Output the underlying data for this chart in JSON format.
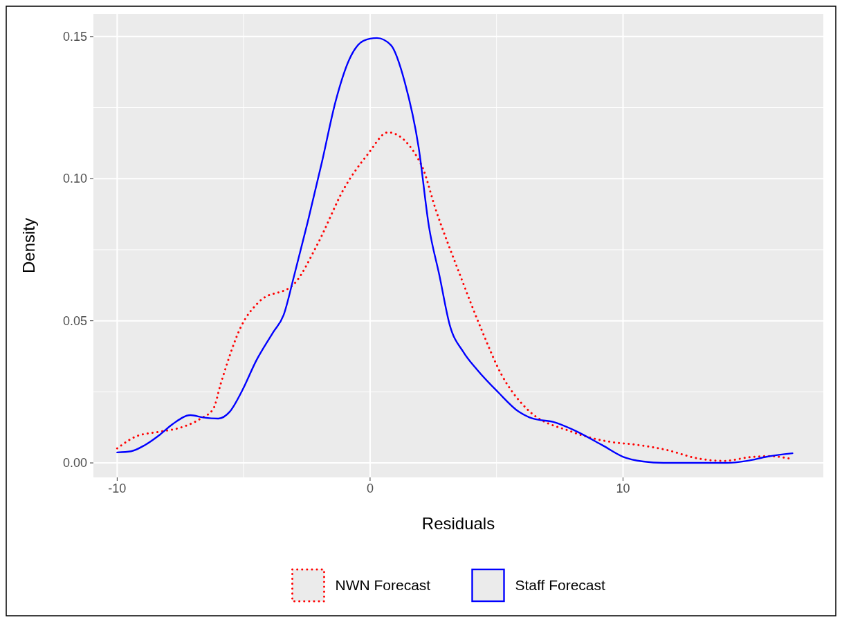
{
  "chart_data": {
    "type": "line",
    "xlabel": "Residuals",
    "ylabel": "Density",
    "xlim": [
      -10.94,
      17.92
    ],
    "ylim": [
      -0.0051,
      0.158
    ],
    "xticks": [
      -10,
      0,
      10
    ],
    "yticks": [
      {
        "value": 0,
        "label": "0.00"
      },
      {
        "value": 0.05,
        "label": "0.05"
      },
      {
        "value": 0.1,
        "label": "0.10"
      },
      {
        "value": 0.15,
        "label": "0.15"
      }
    ],
    "grid": true,
    "legend": "bottom",
    "series": [
      {
        "name": "NWN Forecast",
        "color": "#ff0000",
        "line_style": "dotted",
        "x": [
          -10,
          -9.2,
          -8.3,
          -7.5,
          -6.7,
          -6.2,
          -5.9,
          -5.1,
          -4.4,
          -3,
          -2.1,
          -1,
          -0.1,
          0.71,
          2.02,
          2.6,
          3.56,
          4.4,
          5.2,
          6.2,
          7.96,
          9.74,
          10.34,
          11.7,
          13,
          14,
          15,
          15.8,
          16.6
        ],
        "values": [
          0.0051,
          0.0095,
          0.011,
          0.0124,
          0.0156,
          0.019,
          0.028,
          0.048,
          0.0566,
          0.063,
          0.0766,
          0.097,
          0.1085,
          0.1163,
          0.105,
          0.089,
          0.066,
          0.047,
          0.031,
          0.019,
          0.011,
          0.0071,
          0.0066,
          0.0046,
          0.0015,
          0.0007,
          0.002,
          0.0024,
          0.0015
        ]
      },
      {
        "name": "Staff Forecast",
        "color": "#0000ff",
        "line_style": "solid",
        "x": [
          -10,
          -9.45,
          -8.9,
          -8.3,
          -7.8,
          -7.1,
          -6.6,
          -6,
          -5.55,
          -5.06,
          -4.5,
          -3.83,
          -3.42,
          -3,
          -2.46,
          -1.9,
          -1.37,
          -0.82,
          -0.27,
          0.27,
          0.82,
          1.37,
          1.92,
          2.33,
          2.74,
          3.15,
          3.69,
          4.24,
          5.06,
          5.88,
          6.43,
          7.25,
          8.07,
          9.17,
          9.99,
          10.8,
          11.6,
          14.1,
          14.9,
          15.7,
          16.7
        ],
        "values": [
          0.0037,
          0.0041,
          0.0063,
          0.01,
          0.0137,
          0.0168,
          0.016,
          0.0156,
          0.018,
          0.0254,
          0.036,
          0.046,
          0.052,
          0.066,
          0.085,
          0.106,
          0.127,
          0.142,
          0.1485,
          0.1495,
          0.147,
          0.134,
          0.111,
          0.083,
          0.066,
          0.0485,
          0.039,
          0.0327,
          0.0249,
          0.018,
          0.0156,
          0.0144,
          0.0115,
          0.0063,
          0.0022,
          0.0005,
          0,
          0,
          0.0007,
          0.0022,
          0.0034
        ]
      }
    ]
  }
}
